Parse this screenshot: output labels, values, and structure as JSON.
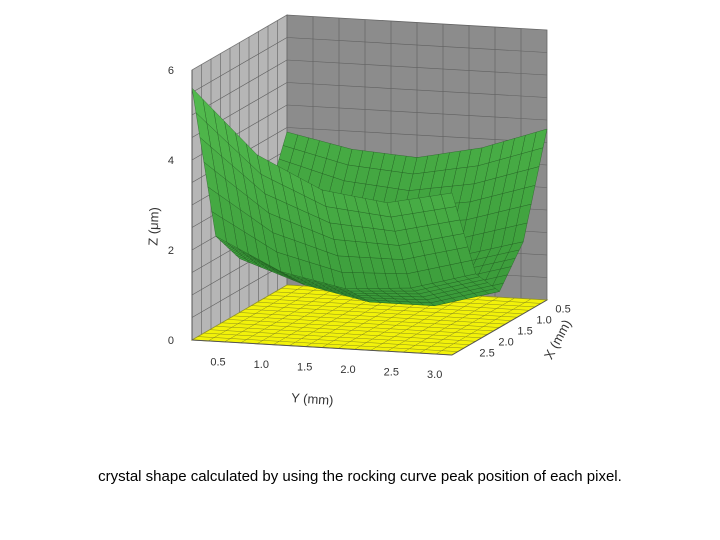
{
  "caption": "crystal shape calculated by using the rocking curve peak position of each pixel.",
  "chart_data": {
    "type": "surface3d",
    "title": "",
    "xlabel": "X (mm)",
    "ylabel": "Y (mm)",
    "zlabel": "Z (μm)",
    "x_ticks": [
      "0.5",
      "1.0",
      "1.5",
      "2.0",
      "2.5"
    ],
    "y_ticks": [
      "0.5",
      "1.0",
      "1.5",
      "2.0",
      "2.5",
      "3.0"
    ],
    "z_ticks": [
      "0",
      "2",
      "4",
      "6"
    ],
    "xlim": [
      0.3,
      2.8
    ],
    "ylim": [
      0.2,
      3.2
    ],
    "zlim": [
      0,
      6
    ],
    "grid": true,
    "colors": {
      "surface": "#3f9e3f",
      "surface_mesh": "#1f5a1f",
      "floor": "#f2f20a",
      "floor_grid": "#8a8a20",
      "back_wall": "#8c8c8c",
      "side_wall": "#b6b6b6",
      "wall_grid": "#606060"
    },
    "x": [
      0.3,
      0.925,
      1.55,
      2.175,
      2.8
    ],
    "y": [
      0.2,
      0.95,
      1.7,
      2.45,
      3.2
    ],
    "z": [
      [
        3.4,
        1.9,
        1.2,
        2.0,
        5.6
      ],
      [
        3.1,
        1.3,
        0.7,
        1.3,
        4.2
      ],
      [
        3.0,
        1.1,
        0.4,
        1.0,
        3.5
      ],
      [
        3.3,
        1.2,
        0.4,
        1.1,
        3.3
      ],
      [
        3.8,
        1.6,
        0.8,
        1.5,
        3.6
      ]
    ]
  }
}
